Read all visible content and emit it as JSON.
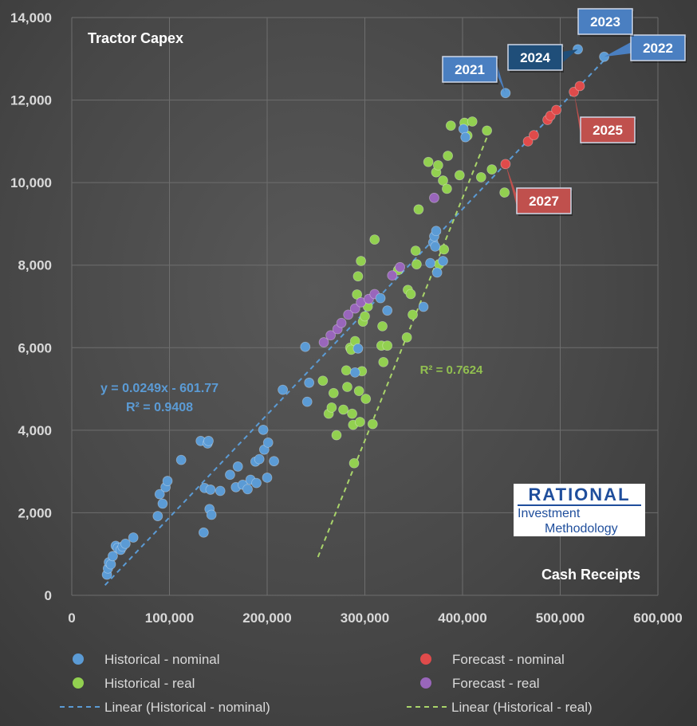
{
  "chart_data": {
    "type": "scatter",
    "title": "Tractor Capex",
    "xlabel": "Cash Receipts",
    "ylabel": "",
    "xlim": [
      0,
      600000
    ],
    "ylim": [
      0,
      14000
    ],
    "x_ticks": [
      "0",
      "100,000",
      "200,000",
      "300,000",
      "400,000",
      "500,000",
      "600,000"
    ],
    "y_ticks": [
      "0",
      "2,000",
      "4,000",
      "6,000",
      "8,000",
      "10,000",
      "12,000",
      "14,000"
    ],
    "grid": true,
    "legend_position": "bottom",
    "series": [
      {
        "name": "Historical - nominal",
        "color": "#5b9bd5",
        "points": [
          [
            36000,
            500
          ],
          [
            37000,
            650
          ],
          [
            38000,
            800
          ],
          [
            40000,
            750
          ],
          [
            42000,
            950
          ],
          [
            45000,
            1200
          ],
          [
            47000,
            1150
          ],
          [
            50000,
            1100
          ],
          [
            52000,
            1180
          ],
          [
            55000,
            1250
          ],
          [
            63000,
            1400
          ],
          [
            88000,
            1920
          ],
          [
            90000,
            2450
          ],
          [
            93000,
            2220
          ],
          [
            96000,
            2620
          ],
          [
            98000,
            2770
          ],
          [
            112000,
            3280
          ],
          [
            132000,
            3740
          ],
          [
            136000,
            2600
          ],
          [
            135000,
            1520
          ],
          [
            139000,
            3680
          ],
          [
            140000,
            3740
          ],
          [
            141000,
            2090
          ],
          [
            142000,
            2560
          ],
          [
            143000,
            1950
          ],
          [
            152000,
            2530
          ],
          [
            162000,
            2920
          ],
          [
            168000,
            2620
          ],
          [
            170000,
            3120
          ],
          [
            175000,
            2680
          ],
          [
            180000,
            2570
          ],
          [
            183000,
            2800
          ],
          [
            188000,
            3240
          ],
          [
            189000,
            2720
          ],
          [
            192000,
            3300
          ],
          [
            196000,
            4010
          ],
          [
            197000,
            3530
          ],
          [
            200000,
            2850
          ],
          [
            201000,
            3700
          ],
          [
            207000,
            3250
          ],
          [
            216000,
            4980
          ],
          [
            239000,
            6020
          ],
          [
            241000,
            4690
          ],
          [
            243000,
            5150
          ],
          [
            290000,
            5400
          ],
          [
            293000,
            5980
          ],
          [
            316000,
            7200
          ],
          [
            323000,
            6900
          ],
          [
            360000,
            6990
          ],
          [
            367000,
            8050
          ],
          [
            370000,
            8550
          ],
          [
            371000,
            8700
          ],
          [
            372000,
            8450
          ],
          [
            373000,
            8830
          ],
          [
            374000,
            7820
          ],
          [
            380000,
            8100
          ],
          [
            401000,
            11300
          ],
          [
            403000,
            11100
          ],
          [
            444000,
            12170
          ],
          [
            518000,
            13230
          ],
          [
            545000,
            13050
          ]
        ]
      },
      {
        "name": "Historical - real",
        "color": "#92d050",
        "points": [
          [
            257000,
            5200
          ],
          [
            263000,
            4400
          ],
          [
            266000,
            4550
          ],
          [
            268000,
            4900
          ],
          [
            271000,
            3880
          ],
          [
            278000,
            4500
          ],
          [
            281000,
            5450
          ],
          [
            282000,
            5050
          ],
          [
            285000,
            6000
          ],
          [
            286000,
            5950
          ],
          [
            287000,
            4400
          ],
          [
            288000,
            4130
          ],
          [
            289000,
            3200
          ],
          [
            290000,
            6160
          ],
          [
            292000,
            7290
          ],
          [
            293000,
            7730
          ],
          [
            294000,
            4950
          ],
          [
            295000,
            4200
          ],
          [
            296000,
            8100
          ],
          [
            297000,
            5430
          ],
          [
            298000,
            6630
          ],
          [
            300000,
            6760
          ],
          [
            301000,
            4760
          ],
          [
            303000,
            7000
          ],
          [
            308000,
            4150
          ],
          [
            310000,
            8620
          ],
          [
            317000,
            6050
          ],
          [
            318000,
            6520
          ],
          [
            319000,
            5650
          ],
          [
            323000,
            6050
          ],
          [
            334000,
            7880
          ],
          [
            343000,
            6250
          ],
          [
            344000,
            7400
          ],
          [
            347000,
            7300
          ],
          [
            349000,
            6800
          ],
          [
            352000,
            8350
          ],
          [
            353000,
            8020
          ],
          [
            355000,
            9350
          ],
          [
            365000,
            10500
          ],
          [
            373000,
            10250
          ],
          [
            375000,
            10420
          ],
          [
            376000,
            8020
          ],
          [
            380000,
            10050
          ],
          [
            381000,
            8380
          ],
          [
            384000,
            9850
          ],
          [
            385000,
            10650
          ],
          [
            388000,
            11380
          ],
          [
            397000,
            10180
          ],
          [
            402000,
            11450
          ],
          [
            405000,
            11140
          ],
          [
            410000,
            11480
          ],
          [
            419000,
            10130
          ],
          [
            425000,
            11260
          ],
          [
            430000,
            10320
          ],
          [
            443000,
            9760
          ]
        ]
      },
      {
        "name": "Forecast - nominal",
        "color": "#e04b4b",
        "points": [
          [
            444000,
            10450
          ],
          [
            467000,
            11000
          ],
          [
            473000,
            11150
          ],
          [
            487000,
            11520
          ],
          [
            490000,
            11620
          ],
          [
            496000,
            11760
          ],
          [
            514000,
            12200
          ],
          [
            520000,
            12340
          ]
        ]
      },
      {
        "name": "Forecast - real",
        "color": "#9966bb",
        "points": [
          [
            258000,
            6130
          ],
          [
            265000,
            6300
          ],
          [
            272000,
            6450
          ],
          [
            276000,
            6600
          ],
          [
            283000,
            6800
          ],
          [
            290000,
            6950
          ],
          [
            296000,
            7100
          ],
          [
            304000,
            7180
          ],
          [
            310000,
            7300
          ],
          [
            328000,
            7750
          ],
          [
            336000,
            7950
          ],
          [
            371000,
            9630
          ]
        ]
      }
    ],
    "trendlines": [
      {
        "name": "Linear (Historical - nominal)",
        "color": "#5b9bd5",
        "x_range": [
          34000,
          545000
        ],
        "slope": 0.0249,
        "intercept": -601.77
      },
      {
        "name": "Linear (Historical - real)",
        "color": "#a9d46a",
        "x_range": [
          252000,
          425000
        ],
        "slope": 0.0588,
        "intercept": -13890
      }
    ],
    "annotations": {
      "nominal_equation": "y = 0.0249x - 601.77",
      "nominal_r2": "R² = 0.9408",
      "real_r2": "R² = 0.7624"
    },
    "callouts": [
      {
        "label": "2021",
        "kind": "nominal",
        "point": [
          444000,
          12170
        ]
      },
      {
        "label": "2022",
        "kind": "nominal",
        "point": [
          545000,
          13050
        ]
      },
      {
        "label": "2023",
        "kind": "nominal",
        "point": [
          518000,
          13230
        ]
      },
      {
        "label": "2024",
        "kind": "nominal-dark",
        "point": [
          518000,
          13230
        ]
      },
      {
        "label": "2025",
        "kind": "forecast",
        "point": [
          514000,
          12200
        ]
      },
      {
        "label": "2027",
        "kind": "forecast",
        "point": [
          444000,
          10450
        ]
      }
    ]
  },
  "logo": {
    "title": "RATIONAL",
    "line1": "Investment",
    "line2": "Methodology"
  },
  "colors": {
    "callout_nominal": "#4a7fc1",
    "callout_dark": "#1f4e79",
    "callout_forecast": "#c0504d"
  }
}
